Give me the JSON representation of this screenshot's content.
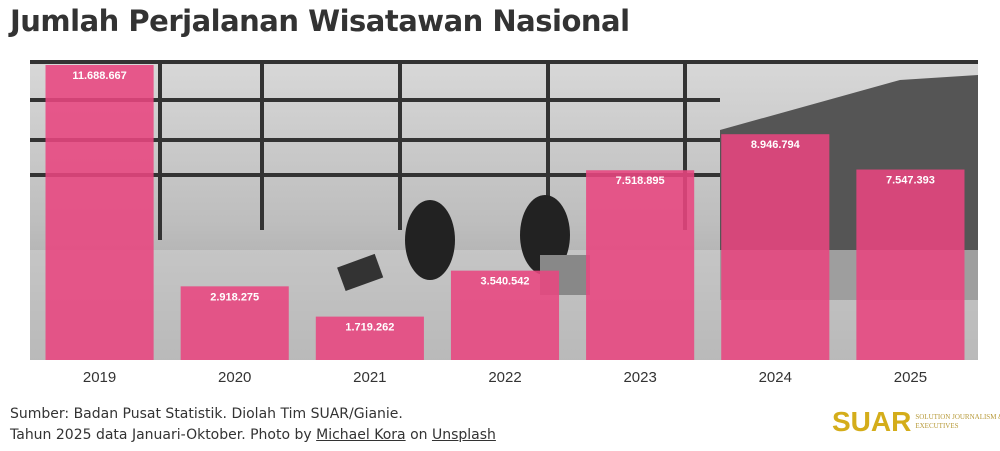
{
  "chart_data": {
    "type": "bar",
    "title": "Jumlah Perjalanan Wisatawan Nasional",
    "categories": [
      "2019",
      "2020",
      "2021",
      "2022",
      "2023",
      "2024",
      "2025"
    ],
    "values": [
      11688667,
      2918275,
      1719262,
      3540542,
      7518895,
      8946794,
      7547393
    ],
    "value_labels": [
      "11.688.667",
      "2.918.275",
      "1.719.262",
      "3.540.542",
      "7.518.895",
      "8.946.794",
      "7.547.393"
    ],
    "color": "#e8457f"
  },
  "footer": {
    "source": "Sumber: Badan Pusat Statistik. Diolah Tim SUAR/Gianie.",
    "note": "Tahun 2025 data Januari-Oktober. Photo by",
    "photographer": "Michael Kora",
    "on": "on",
    "site": "Unsplash"
  },
  "logo": {
    "name": "SUAR",
    "tagline": "SOLUTION JOURNALISM & EXECUTIVES"
  }
}
